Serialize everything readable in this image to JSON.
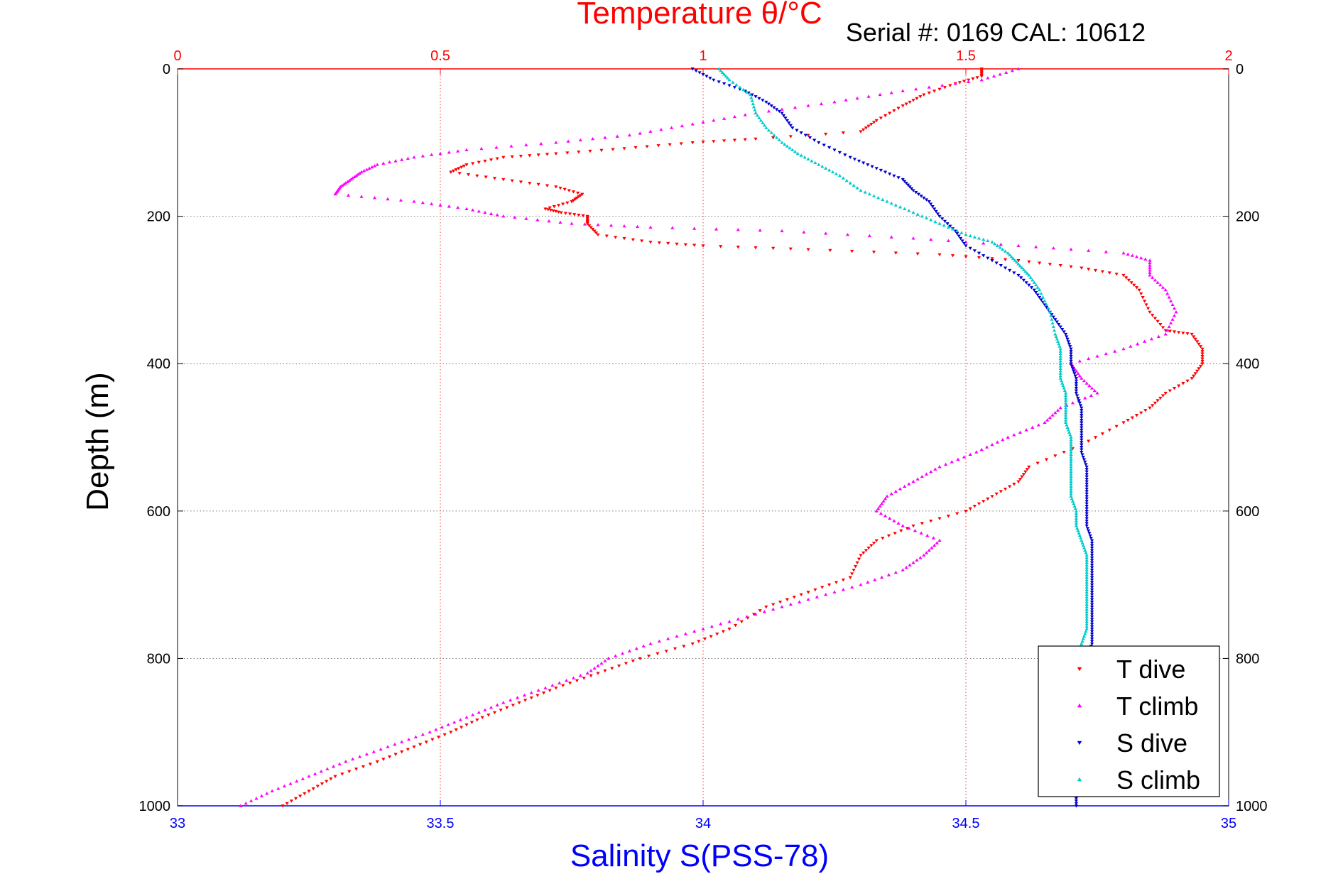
{
  "chart_data": {
    "type": "scatter",
    "top_title": "Temperature θ/°C",
    "serial_label": "Serial #: 0169 CAL: 10612",
    "xlabel": "Salinity S(PSS-78)",
    "ylabel": "Depth (m)",
    "salinity_axis": {
      "range": [
        33,
        35
      ],
      "ticks": [
        "33",
        "33.5",
        "34",
        "34.5",
        "35"
      ]
    },
    "temperature_axis": {
      "range": [
        0,
        2
      ],
      "ticks": [
        "0",
        "0.5",
        "1",
        "1.5",
        "2"
      ]
    },
    "depth_axis": {
      "range": [
        0,
        1000
      ],
      "reversed": true,
      "ticks": [
        "0",
        "200",
        "400",
        "600",
        "800",
        "1000"
      ]
    },
    "grid": true,
    "legend_position": "bottom-right",
    "colors": {
      "temperature_axis": "#ff0000",
      "salinity_axis": "#0000ff",
      "depth_axis": "#000000",
      "grid": "#555555"
    },
    "series": [
      {
        "name": "T dive",
        "axis": "temperature",
        "color": "#ff0000",
        "marker": "triangle-down",
        "points": [
          [
            1.53,
            0
          ],
          [
            1.53,
            10
          ],
          [
            1.48,
            20
          ],
          [
            1.42,
            35
          ],
          [
            1.38,
            50
          ],
          [
            1.33,
            70
          ],
          [
            1.3,
            85
          ],
          [
            1.1,
            95
          ],
          [
            0.98,
            100
          ],
          [
            0.85,
            108
          ],
          [
            0.72,
            115
          ],
          [
            0.62,
            120
          ],
          [
            0.55,
            130
          ],
          [
            0.52,
            140
          ],
          [
            0.62,
            150
          ],
          [
            0.72,
            160
          ],
          [
            0.77,
            170
          ],
          [
            0.75,
            180
          ],
          [
            0.7,
            190
          ],
          [
            0.73,
            195
          ],
          [
            0.78,
            200
          ],
          [
            0.78,
            210
          ],
          [
            0.8,
            225
          ],
          [
            0.9,
            235
          ],
          [
            1.0,
            240
          ],
          [
            1.2,
            245
          ],
          [
            1.45,
            252
          ],
          [
            1.6,
            260
          ],
          [
            1.72,
            270
          ],
          [
            1.8,
            280
          ],
          [
            1.83,
            300
          ],
          [
            1.85,
            330
          ],
          [
            1.88,
            355
          ],
          [
            1.93,
            360
          ],
          [
            1.95,
            380
          ],
          [
            1.95,
            400
          ],
          [
            1.93,
            420
          ],
          [
            1.88,
            440
          ],
          [
            1.85,
            460
          ],
          [
            1.8,
            480
          ],
          [
            1.72,
            510
          ],
          [
            1.62,
            540
          ],
          [
            1.6,
            560
          ],
          [
            1.55,
            580
          ],
          [
            1.5,
            600
          ],
          [
            1.4,
            620
          ],
          [
            1.33,
            640
          ],
          [
            1.3,
            660
          ],
          [
            1.28,
            690
          ],
          [
            1.2,
            710
          ],
          [
            1.12,
            730
          ],
          [
            1.05,
            760
          ],
          [
            0.98,
            780
          ],
          [
            0.88,
            800
          ],
          [
            0.8,
            820
          ],
          [
            0.72,
            840
          ],
          [
            0.65,
            860
          ],
          [
            0.58,
            880
          ],
          [
            0.52,
            900
          ],
          [
            0.45,
            920
          ],
          [
            0.38,
            940
          ],
          [
            0.3,
            960
          ],
          [
            0.25,
            980
          ],
          [
            0.2,
            1000
          ]
        ]
      },
      {
        "name": "T climb",
        "axis": "temperature",
        "color": "#ff00ff",
        "marker": "triangle-up",
        "points": [
          [
            1.6,
            0
          ],
          [
            1.53,
            15
          ],
          [
            1.38,
            30
          ],
          [
            1.25,
            45
          ],
          [
            1.1,
            60
          ],
          [
            0.98,
            75
          ],
          [
            0.86,
            90
          ],
          [
            0.72,
            100
          ],
          [
            0.55,
            110
          ],
          [
            0.45,
            120
          ],
          [
            0.38,
            130
          ],
          [
            0.35,
            140
          ],
          [
            0.33,
            150
          ],
          [
            0.31,
            160
          ],
          [
            0.3,
            170
          ],
          [
            0.45,
            180
          ],
          [
            0.55,
            190
          ],
          [
            0.62,
            200
          ],
          [
            0.75,
            210
          ],
          [
            0.9,
            215
          ],
          [
            1.15,
            220
          ],
          [
            1.4,
            230
          ],
          [
            1.6,
            240
          ],
          [
            1.8,
            250
          ],
          [
            1.85,
            260
          ],
          [
            1.85,
            280
          ],
          [
            1.88,
            300
          ],
          [
            1.9,
            330
          ],
          [
            1.88,
            360
          ],
          [
            1.8,
            380
          ],
          [
            1.7,
            400
          ],
          [
            1.72,
            420
          ],
          [
            1.75,
            440
          ],
          [
            1.68,
            460
          ],
          [
            1.65,
            480
          ],
          [
            1.58,
            500
          ],
          [
            1.52,
            520
          ],
          [
            1.45,
            540
          ],
          [
            1.4,
            560
          ],
          [
            1.35,
            580
          ],
          [
            1.33,
            600
          ],
          [
            1.38,
            620
          ],
          [
            1.45,
            640
          ],
          [
            1.42,
            660
          ],
          [
            1.38,
            680
          ],
          [
            1.3,
            700
          ],
          [
            1.2,
            720
          ],
          [
            1.1,
            740
          ],
          [
            1.0,
            760
          ],
          [
            0.9,
            780
          ],
          [
            0.82,
            800
          ],
          [
            0.78,
            820
          ],
          [
            0.7,
            840
          ],
          [
            0.62,
            860
          ],
          [
            0.55,
            880
          ],
          [
            0.48,
            900
          ],
          [
            0.4,
            920
          ],
          [
            0.32,
            940
          ],
          [
            0.25,
            960
          ],
          [
            0.18,
            980
          ],
          [
            0.12,
            1000
          ]
        ]
      },
      {
        "name": "S dive",
        "axis": "salinity",
        "color": "#0000cc",
        "marker": "triangle-down",
        "points": [
          [
            33.98,
            0
          ],
          [
            34.02,
            15
          ],
          [
            34.08,
            30
          ],
          [
            34.12,
            45
          ],
          [
            34.15,
            60
          ],
          [
            34.17,
            80
          ],
          [
            34.22,
            100
          ],
          [
            34.28,
            120
          ],
          [
            34.33,
            135
          ],
          [
            34.38,
            150
          ],
          [
            34.4,
            165
          ],
          [
            34.43,
            180
          ],
          [
            34.45,
            200
          ],
          [
            34.48,
            220
          ],
          [
            34.5,
            240
          ],
          [
            34.55,
            260
          ],
          [
            34.6,
            280
          ],
          [
            34.63,
            300
          ],
          [
            34.65,
            320
          ],
          [
            34.67,
            340
          ],
          [
            34.69,
            360
          ],
          [
            34.7,
            380
          ],
          [
            34.7,
            400
          ],
          [
            34.71,
            420
          ],
          [
            34.71,
            440
          ],
          [
            34.72,
            460
          ],
          [
            34.72,
            480
          ],
          [
            34.72,
            500
          ],
          [
            34.72,
            520
          ],
          [
            34.73,
            540
          ],
          [
            34.73,
            560
          ],
          [
            34.73,
            580
          ],
          [
            34.73,
            600
          ],
          [
            34.73,
            620
          ],
          [
            34.74,
            640
          ],
          [
            34.74,
            660
          ],
          [
            34.74,
            680
          ],
          [
            34.74,
            700
          ],
          [
            34.74,
            720
          ],
          [
            34.74,
            740
          ],
          [
            34.74,
            760
          ],
          [
            34.74,
            780
          ],
          [
            34.73,
            800
          ],
          [
            34.73,
            820
          ],
          [
            34.73,
            840
          ],
          [
            34.73,
            860
          ],
          [
            34.72,
            880
          ],
          [
            34.72,
            900
          ],
          [
            34.72,
            920
          ],
          [
            34.71,
            940
          ],
          [
            34.71,
            960
          ],
          [
            34.71,
            980
          ],
          [
            34.71,
            1000
          ]
        ]
      },
      {
        "name": "S climb",
        "axis": "salinity",
        "color": "#00cccc",
        "marker": "triangle-up",
        "points": [
          [
            34.03,
            0
          ],
          [
            34.05,
            15
          ],
          [
            34.09,
            35
          ],
          [
            34.1,
            60
          ],
          [
            34.12,
            80
          ],
          [
            34.15,
            100
          ],
          [
            34.18,
            115
          ],
          [
            34.22,
            130
          ],
          [
            34.26,
            145
          ],
          [
            34.3,
            165
          ],
          [
            34.35,
            180
          ],
          [
            34.4,
            195
          ],
          [
            34.45,
            210
          ],
          [
            34.5,
            225
          ],
          [
            34.55,
            235
          ],
          [
            34.58,
            250
          ],
          [
            34.6,
            265
          ],
          [
            34.62,
            280
          ],
          [
            34.64,
            300
          ],
          [
            34.66,
            330
          ],
          [
            34.67,
            360
          ],
          [
            34.68,
            380
          ],
          [
            34.68,
            400
          ],
          [
            34.68,
            420
          ],
          [
            34.69,
            440
          ],
          [
            34.69,
            460
          ],
          [
            34.69,
            480
          ],
          [
            34.7,
            500
          ],
          [
            34.7,
            520
          ],
          [
            34.7,
            540
          ],
          [
            34.7,
            560
          ],
          [
            34.7,
            580
          ],
          [
            34.71,
            600
          ],
          [
            34.71,
            620
          ],
          [
            34.72,
            640
          ],
          [
            34.73,
            660
          ],
          [
            34.73,
            680
          ],
          [
            34.73,
            700
          ],
          [
            34.73,
            720
          ],
          [
            34.73,
            740
          ],
          [
            34.73,
            760
          ],
          [
            34.72,
            780
          ],
          [
            34.71,
            800
          ]
        ]
      }
    ]
  }
}
